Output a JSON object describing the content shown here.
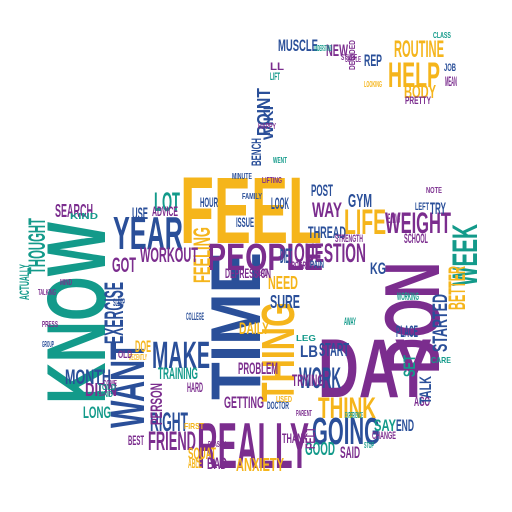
{
  "palette": {
    "yellow": "#f5b51b",
    "blue": "#2a4f99",
    "purple": "#7b2d8e",
    "teal": "#139a8a"
  },
  "words": [
    {
      "text": "FEEL",
      "color": "yellow"
    },
    {
      "text": "TIME",
      "color": "blue"
    },
    {
      "text": "KNOW",
      "color": "teal"
    },
    {
      "text": "DON",
      "color": "purple"
    },
    {
      "text": "DAY",
      "color": "purple"
    },
    {
      "text": "REALLY",
      "color": "purple"
    },
    {
      "text": "PEOPLE",
      "color": "purple"
    },
    {
      "text": "YEAR",
      "color": "blue"
    },
    {
      "text": "WANT",
      "color": "blue"
    },
    {
      "text": "THING",
      "color": "yellow"
    },
    {
      "text": "MAKE",
      "color": "blue"
    },
    {
      "text": "GOING",
      "color": "blue"
    },
    {
      "text": "WEEK",
      "color": "teal"
    },
    {
      "text": "THINK",
      "color": "yellow"
    },
    {
      "text": "HELP",
      "color": "yellow"
    },
    {
      "text": "WEIGHT",
      "color": "purple"
    },
    {
      "text": "LIFE",
      "color": "yellow"
    },
    {
      "text": "QUESTION",
      "color": "purple"
    },
    {
      "text": "WORK",
      "color": "blue"
    },
    {
      "text": "FRIEND",
      "color": "purple"
    },
    {
      "text": "RIGHT",
      "color": "blue"
    },
    {
      "text": "FEELING",
      "color": "yellow"
    },
    {
      "text": "EXERCISE",
      "color": "blue"
    },
    {
      "text": "WORKOUT",
      "color": "purple"
    },
    {
      "text": "THOUGHT",
      "color": "teal"
    },
    {
      "text": "STARTED",
      "color": "blue"
    },
    {
      "text": "BETTER",
      "color": "yellow"
    },
    {
      "text": "ROUTINE",
      "color": "yellow"
    },
    {
      "text": "MONTH",
      "color": "blue"
    },
    {
      "text": "DIDN",
      "color": "purple"
    },
    {
      "text": "LOT",
      "color": "teal"
    },
    {
      "text": "GOT",
      "color": "purple"
    },
    {
      "text": "SURE",
      "color": "blue"
    },
    {
      "text": "NEED",
      "color": "yellow"
    },
    {
      "text": "WAY",
      "color": "purple"
    },
    {
      "text": "ANXIETY",
      "color": "yellow"
    },
    {
      "text": "START",
      "color": "blue"
    },
    {
      "text": "SEARCH",
      "color": "purple"
    },
    {
      "text": "MUSCLE",
      "color": "blue"
    },
    {
      "text": "BODY",
      "color": "yellow"
    },
    {
      "text": "POINT",
      "color": "blue"
    },
    {
      "text": "TRAINING",
      "color": "teal"
    },
    {
      "text": "PROBLEM",
      "color": "purple"
    },
    {
      "text": "GETTING",
      "color": "purple"
    },
    {
      "text": "LONG",
      "color": "teal"
    },
    {
      "text": "SQUAT",
      "color": "yellow"
    },
    {
      "text": "GOOD",
      "color": "teal"
    },
    {
      "text": "SAID",
      "color": "purple"
    },
    {
      "text": "SAY",
      "color": "teal"
    },
    {
      "text": "END",
      "color": "blue"
    },
    {
      "text": "TRYING",
      "color": "purple"
    },
    {
      "text": "THREAD",
      "color": "blue"
    },
    {
      "text": "POST",
      "color": "blue"
    },
    {
      "text": "GYM",
      "color": "blue"
    },
    {
      "text": "SET",
      "color": "teal"
    },
    {
      "text": "AGO",
      "color": "purple"
    },
    {
      "text": "TALK",
      "color": "blue"
    },
    {
      "text": "KG",
      "color": "blue"
    },
    {
      "text": "LB",
      "color": "blue"
    },
    {
      "text": "PERSON",
      "color": "purple"
    },
    {
      "text": "DAILY",
      "color": "yellow"
    },
    {
      "text": "BAD",
      "color": "purple"
    },
    {
      "text": "ABLE",
      "color": "yellow"
    },
    {
      "text": "NEW",
      "color": "purple"
    },
    {
      "text": "REP",
      "color": "blue"
    },
    {
      "text": "LOOK",
      "color": "blue"
    },
    {
      "text": "HOUR",
      "color": "blue"
    },
    {
      "text": "USE",
      "color": "blue"
    },
    {
      "text": "ADVICE",
      "color": "purple"
    },
    {
      "text": "PLACE",
      "color": "blue"
    },
    {
      "text": "WORKING",
      "color": "teal"
    },
    {
      "text": "DEPRESSION",
      "color": "purple"
    },
    {
      "text": "STRENGTH",
      "color": "purple"
    },
    {
      "text": "TRY",
      "color": "blue"
    },
    {
      "text": "SCHOOL",
      "color": "purple"
    },
    {
      "text": "CHANGE",
      "color": "purple"
    },
    {
      "text": "THANK",
      "color": "purple"
    },
    {
      "text": "DOE",
      "color": "yellow"
    },
    {
      "text": "BEST",
      "color": "purple"
    },
    {
      "text": "HARD",
      "color": "purple"
    },
    {
      "text": "WIKI",
      "color": "blue"
    },
    {
      "text": "BENCH",
      "color": "blue"
    },
    {
      "text": "FELT",
      "color": "purple"
    },
    {
      "text": "PROGRAM",
      "color": "purple"
    },
    {
      "text": "DIET",
      "color": "blue"
    },
    {
      "text": "ACTUALLY",
      "color": "teal"
    },
    {
      "text": "PRETTY",
      "color": "purple"
    },
    {
      "text": "HAPPY",
      "color": "purple"
    },
    {
      "text": "MINUTE",
      "color": "blue"
    },
    {
      "text": "LIFTING",
      "color": "purple"
    },
    {
      "text": "ISSUE",
      "color": "blue"
    },
    {
      "text": "HEAD",
      "color": "purple"
    },
    {
      "text": "PAIN",
      "color": "blue"
    },
    {
      "text": "MEAN",
      "color": "purple"
    },
    {
      "text": "JOB",
      "color": "blue"
    },
    {
      "text": "LEFT",
      "color": "blue"
    },
    {
      "text": "AWAY",
      "color": "teal"
    },
    {
      "text": "LEG",
      "color": "teal"
    },
    {
      "text": "RECENTLY",
      "color": "yellow"
    },
    {
      "text": "COLLEGE",
      "color": "blue"
    },
    {
      "text": "SLEEP",
      "color": "blue"
    },
    {
      "text": "OLD",
      "color": "purple"
    },
    {
      "text": "COME",
      "color": "purple"
    },
    {
      "text": "TOLD",
      "color": "teal"
    },
    {
      "text": "FIND",
      "color": "teal"
    },
    {
      "text": "STOP",
      "color": "teal"
    },
    {
      "text": "CARE",
      "color": "teal"
    },
    {
      "text": "DECIDED",
      "color": "purple"
    },
    {
      "text": "EXPERIENCE",
      "color": "teal"
    },
    {
      "text": "FAMILY",
      "color": "blue"
    },
    {
      "text": "DOCTOR",
      "color": "blue"
    },
    {
      "text": "LOOKING",
      "color": "yellow"
    },
    {
      "text": "EATING",
      "color": "purple"
    },
    {
      "text": "LIFT",
      "color": "teal"
    },
    {
      "text": "LL",
      "color": "purple"
    },
    {
      "text": "WENT",
      "color": "teal"
    },
    {
      "text": "USED",
      "color": "yellow"
    },
    {
      "text": "FIRST",
      "color": "yellow"
    },
    {
      "text": "REASON",
      "color": "purple"
    },
    {
      "text": "TALKING",
      "color": "purple"
    },
    {
      "text": "MIND",
      "color": "purple"
    },
    {
      "text": "SIMPLE",
      "color": "purple"
    },
    {
      "text": "KIND",
      "color": "teal"
    },
    {
      "text": "STUFF",
      "color": "purple"
    },
    {
      "text": "UNDERSTAND",
      "color": "teal"
    },
    {
      "text": "PRESS",
      "color": "purple"
    },
    {
      "text": "GROUP",
      "color": "blue"
    },
    {
      "text": "PARENT",
      "color": "purple"
    },
    {
      "text": "NOTE",
      "color": "purple"
    },
    {
      "text": "CLASS",
      "color": "teal"
    },
    {
      "text": "TRAINER",
      "color": "teal"
    },
    {
      "text": "MAYBE",
      "color": "purple"
    }
  ]
}
